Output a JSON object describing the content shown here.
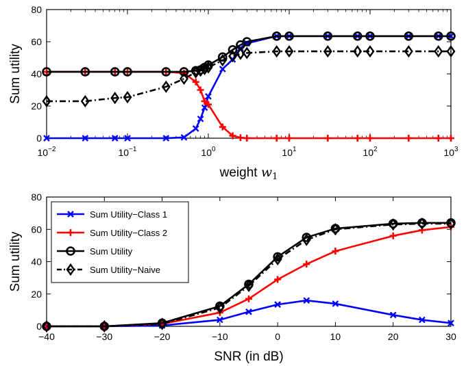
{
  "chart_data": [
    {
      "type": "line",
      "xscale": "log",
      "xlim": [
        0.01,
        1000
      ],
      "ylim": [
        0,
        80
      ],
      "xticks": [
        0.01,
        0.1,
        1,
        10,
        100,
        1000
      ],
      "xtick_labels": [
        {
          "base": "10",
          "exp": "−2"
        },
        {
          "base": "10",
          "exp": "−1"
        },
        {
          "base": "10",
          "exp": "0"
        },
        {
          "base": "10",
          "exp": "1"
        },
        {
          "base": "10",
          "exp": "2"
        },
        {
          "base": "10",
          "exp": "3"
        }
      ],
      "yticks": [
        "0",
        "20",
        "40",
        "60",
        "80"
      ],
      "ylabel": "Sum utility",
      "xlabel_text": "weight ",
      "xlabel_math": "w",
      "xlabel_sub": "1",
      "grid": false,
      "series": [
        {
          "color": "#0000ff",
          "marker": "x",
          "dash": "solid",
          "x": [
            0.01,
            0.03,
            0.07,
            0.1,
            0.3,
            0.5,
            0.7,
            0.8,
            0.9,
            1,
            1.5,
            2,
            2.5,
            3,
            7,
            10,
            30,
            70,
            100,
            300,
            700,
            1000
          ],
          "y": [
            0,
            0,
            0,
            0,
            0,
            0.5,
            6,
            12,
            19,
            26,
            43,
            49,
            56,
            59,
            63.5,
            63.5,
            63.5,
            63.5,
            63.5,
            63.5,
            63.5,
            63.5
          ]
        },
        {
          "color": "#ff0000",
          "marker": "+",
          "dash": "solid",
          "x": [
            0.01,
            0.03,
            0.07,
            0.1,
            0.3,
            0.5,
            0.7,
            0.8,
            0.9,
            1,
            1.5,
            2,
            2.5,
            3,
            7,
            10,
            30,
            70,
            100,
            300,
            700,
            1000
          ],
          "y": [
            41.3,
            41.3,
            41.3,
            41.3,
            41.3,
            40.5,
            35,
            30,
            23,
            21,
            7,
            1.5,
            0.3,
            0,
            0,
            0,
            0,
            0,
            0,
            0,
            0,
            0
          ]
        },
        {
          "color": "#000000",
          "marker": "o",
          "dash": "solid",
          "x": [
            0.01,
            0.03,
            0.07,
            0.1,
            0.3,
            0.5,
            0.7,
            0.8,
            0.9,
            1,
            1.5,
            2,
            2.5,
            3,
            7,
            10,
            30,
            70,
            100,
            300,
            700,
            1000
          ],
          "y": [
            41.3,
            41.3,
            41.3,
            41.3,
            41.3,
            41.3,
            42,
            42.5,
            44,
            45.5,
            50.5,
            55,
            58,
            60,
            63.5,
            63.5,
            63.5,
            63.5,
            63.5,
            63.5,
            63.5,
            63.5
          ]
        },
        {
          "color": "#000000",
          "marker": "diamond",
          "dash": "dashdot",
          "x": [
            0.01,
            0.03,
            0.07,
            0.1,
            0.3,
            0.5,
            0.7,
            0.8,
            0.9,
            1,
            1.5,
            2,
            2.5,
            3,
            7,
            10,
            30,
            70,
            100,
            300,
            700,
            1000
          ],
          "y": [
            23,
            23,
            25,
            25.5,
            32,
            37,
            41,
            42,
            43,
            44,
            48.5,
            51,
            52.5,
            53,
            54,
            54,
            54,
            54,
            54,
            54,
            54,
            54
          ]
        }
      ]
    },
    {
      "type": "line",
      "xscale": "linear",
      "xlim": [
        -40,
        30
      ],
      "ylim": [
        0,
        80
      ],
      "xticks": [
        "−40",
        "−30",
        "−20",
        "−10",
        "0",
        "10",
        "20",
        "30"
      ],
      "yticks": [
        "0",
        "20",
        "40",
        "60",
        "80"
      ],
      "ylabel": "Sum utility",
      "xlabel": "SNR (in dB)",
      "grid": false,
      "legend_position": "top-left",
      "series": [
        {
          "name": "Sum Utility−Class 1",
          "color": "#0000ff",
          "marker": "x",
          "dash": "solid",
          "x": [
            -40,
            -30,
            -20,
            -10,
            -5,
            0,
            5,
            10,
            20,
            25,
            30
          ],
          "y": [
            0,
            0,
            0.5,
            4,
            9,
            13.5,
            16,
            14,
            7,
            4,
            2
          ]
        },
        {
          "name": "Sum Utility−Class 2",
          "color": "#ff0000",
          "marker": "+",
          "dash": "solid",
          "x": [
            -40,
            -30,
            -20,
            -10,
            -5,
            0,
            5,
            10,
            20,
            25,
            30
          ],
          "y": [
            0,
            0,
            1.5,
            8.5,
            17,
            29,
            38.5,
            46.5,
            56,
            59.5,
            61.5
          ]
        },
        {
          "name": "Sum Utility",
          "color": "#000000",
          "marker": "o",
          "dash": "solid",
          "x": [
            -40,
            -30,
            -20,
            -10,
            -5,
            0,
            5,
            10,
            20,
            25,
            30
          ],
          "y": [
            0,
            0,
            2,
            12.5,
            26,
            43,
            55,
            60.5,
            63.5,
            64,
            64
          ]
        },
        {
          "name": "Sum Utility−Naive",
          "color": "#000000",
          "marker": "diamond",
          "dash": "dashdot",
          "x": [
            -40,
            -30,
            -20,
            -10,
            -5,
            0,
            5,
            10,
            20,
            25,
            30
          ],
          "y": [
            0,
            0,
            1.5,
            11.5,
            25,
            41.5,
            53.5,
            60,
            63,
            63.5,
            63.5
          ]
        }
      ]
    }
  ]
}
